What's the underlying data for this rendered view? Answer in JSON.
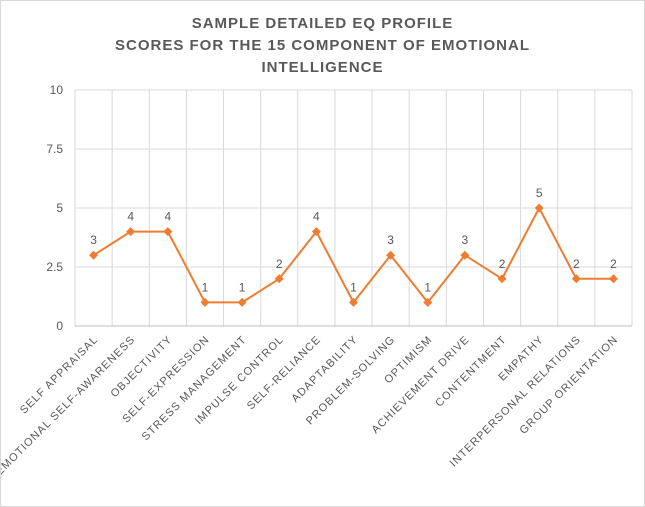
{
  "chart_data": {
    "type": "line",
    "title_lines": [
      "SAMPLE DETAILED EQ PROFILE",
      "SCORES FOR THE 15 COMPONENT OF EMOTIONAL",
      "INTELLIGENCE"
    ],
    "categories": [
      "SELF APPRAISAL",
      "EMOTIONAL SELF-AWARENESS",
      "OBJECTIVITY",
      "SELF-EXPRESSION",
      "STRESS MANAGEMENT",
      "IMPULSE CONTROL",
      "SELF-RELIANCE",
      "ADAPTABILITY",
      "PROBLEM-SOLVING",
      "OPTIMISM",
      "ACHIEVEMENT DRIVE",
      "CONTENTMENT",
      "EMPATHY",
      "INTERPERSONAL RELATIONS",
      "GROUP ORIENTATION"
    ],
    "values": [
      3,
      4,
      4,
      1,
      1,
      2,
      4,
      1,
      3,
      1,
      3,
      2,
      5,
      2,
      2
    ],
    "y_ticks": [
      "0",
      "2.5",
      "5",
      "7.5",
      "10"
    ],
    "ylim": [
      0,
      10
    ],
    "grid": true,
    "color": "#ed7d31"
  }
}
